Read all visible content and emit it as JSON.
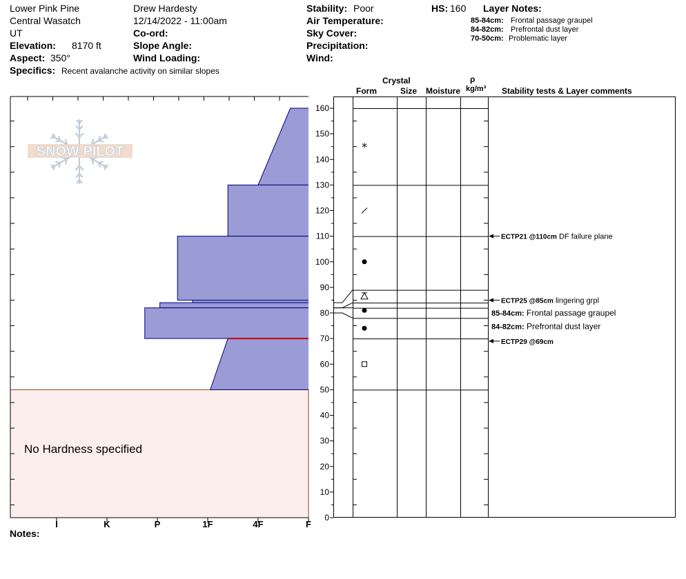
{
  "header": {
    "location": "Lower Pink Pine",
    "range": "Central Wasatch",
    "state": "UT",
    "elevation_label": "Elevation:",
    "elevation_value": "8170 ft",
    "aspect_label": "Aspect:",
    "aspect_value": "350°",
    "specifics_label": "Specifics:",
    "specifics_value": "Recent avalanche activity on similar slopes",
    "observer": "Drew Hardesty",
    "datetime": "12/14/2022 - 11:00am",
    "coord_label": "Co-ord:",
    "slope_label": "Slope Angle:",
    "wind_loading_label": "Wind Loading:",
    "stability_label": "Stability:",
    "stability_value": "Poor",
    "air_temp_label": "Air Temperature:",
    "sky_cover_label": "Sky Cover:",
    "precip_label": "Precipitation:",
    "wind_label": "Wind:",
    "hs_label": "HS:",
    "hs_value": "160",
    "layer_notes_label": "Layer Notes:",
    "layer_notes": [
      {
        "range": "85-84cm:",
        "text": "Frontal passage graupel"
      },
      {
        "range": "84-82cm:",
        "text": "Prefrontal dust layer"
      },
      {
        "range": "70-50cm:",
        "text": "Problematic layer"
      }
    ]
  },
  "logo_text": "SNOW PILOT",
  "no_hardness_text": "No Hardness specified",
  "notes_label": "Notes:",
  "columns": {
    "crystal": "Crystal",
    "form": "Form",
    "size": "Size",
    "moisture": "Moisture",
    "rho": "ρ",
    "density_unit": "kg/m³",
    "stability_comments": "Stability tests & Layer comments"
  },
  "colors": {
    "hardness_fill": "#9b9bd6",
    "hardness_stroke": "#000080",
    "no_hardness_fill": "#fdeeee",
    "weak_layer_line": "#cc0000",
    "logo_color": "#c0ccd8",
    "logo_text_fill": "#f0d8c8"
  },
  "chart_data": {
    "type": "snow-profile",
    "hardness_scale": [
      "I",
      "K",
      "P",
      "1F",
      "4F",
      "F"
    ],
    "depth_ticks": [
      160,
      150,
      140,
      130,
      120,
      110,
      100,
      90,
      80,
      70,
      60,
      50,
      40,
      30,
      20,
      10,
      0
    ],
    "ylim": [
      0,
      160
    ],
    "layers": [
      {
        "top": 160,
        "bottom": 130,
        "hardness_top": 0.36,
        "hardness_bottom": 1.0
      },
      {
        "top": 130,
        "bottom": 110,
        "hardness_top": 1.6,
        "hardness_bottom": 1.6
      },
      {
        "top": 110,
        "bottom": 85,
        "hardness_top": 2.6,
        "hardness_bottom": 2.6
      },
      {
        "top": 85,
        "bottom": 84,
        "hardness_top": 2.3,
        "hardness_bottom": 2.3
      },
      {
        "top": 84,
        "bottom": 82,
        "hardness_top": 2.95,
        "hardness_bottom": 2.95
      },
      {
        "top": 82,
        "bottom": 70,
        "hardness_top": 3.25,
        "hardness_bottom": 3.25
      },
      {
        "top": 70,
        "bottom": 50,
        "hardness_top": 1.6,
        "hardness_bottom": 1.95
      }
    ],
    "no_hardness_range": [
      0,
      50
    ],
    "weak_layer_depth": 70,
    "layer_boundaries": [
      160,
      130,
      110,
      89,
      84,
      82,
      78,
      70,
      50
    ],
    "crystal_forms": [
      {
        "depth": 145,
        "symbol": "*"
      },
      {
        "depth": 120,
        "symbol": "/"
      },
      {
        "depth": 100,
        "symbol": "●"
      },
      {
        "depth": 86.5,
        "symbol": "graupel"
      },
      {
        "depth": 81,
        "symbol": "●"
      },
      {
        "depth": 74,
        "symbol": "●"
      },
      {
        "depth": 60,
        "symbol": "□"
      }
    ],
    "stability_tests": [
      {
        "depth": 110,
        "label_depth": 110,
        "code": "ECTP21 @110cm",
        "comment": "DF failure plane"
      },
      {
        "depth": 85,
        "label_depth": 85,
        "code": "ECTP25 @85cm",
        "comment": "lingering grpl"
      },
      {
        "depth": 69,
        "label_depth": 69,
        "code": "ECTP29 @69cm",
        "comment": ""
      }
    ],
    "layer_comments": [
      {
        "depth": 80,
        "range": "85-84cm:",
        "text": "Frontal passage graupel"
      },
      {
        "depth": 74.7,
        "range": "84-82cm:",
        "text": "Prefrontal dust layer"
      }
    ]
  }
}
